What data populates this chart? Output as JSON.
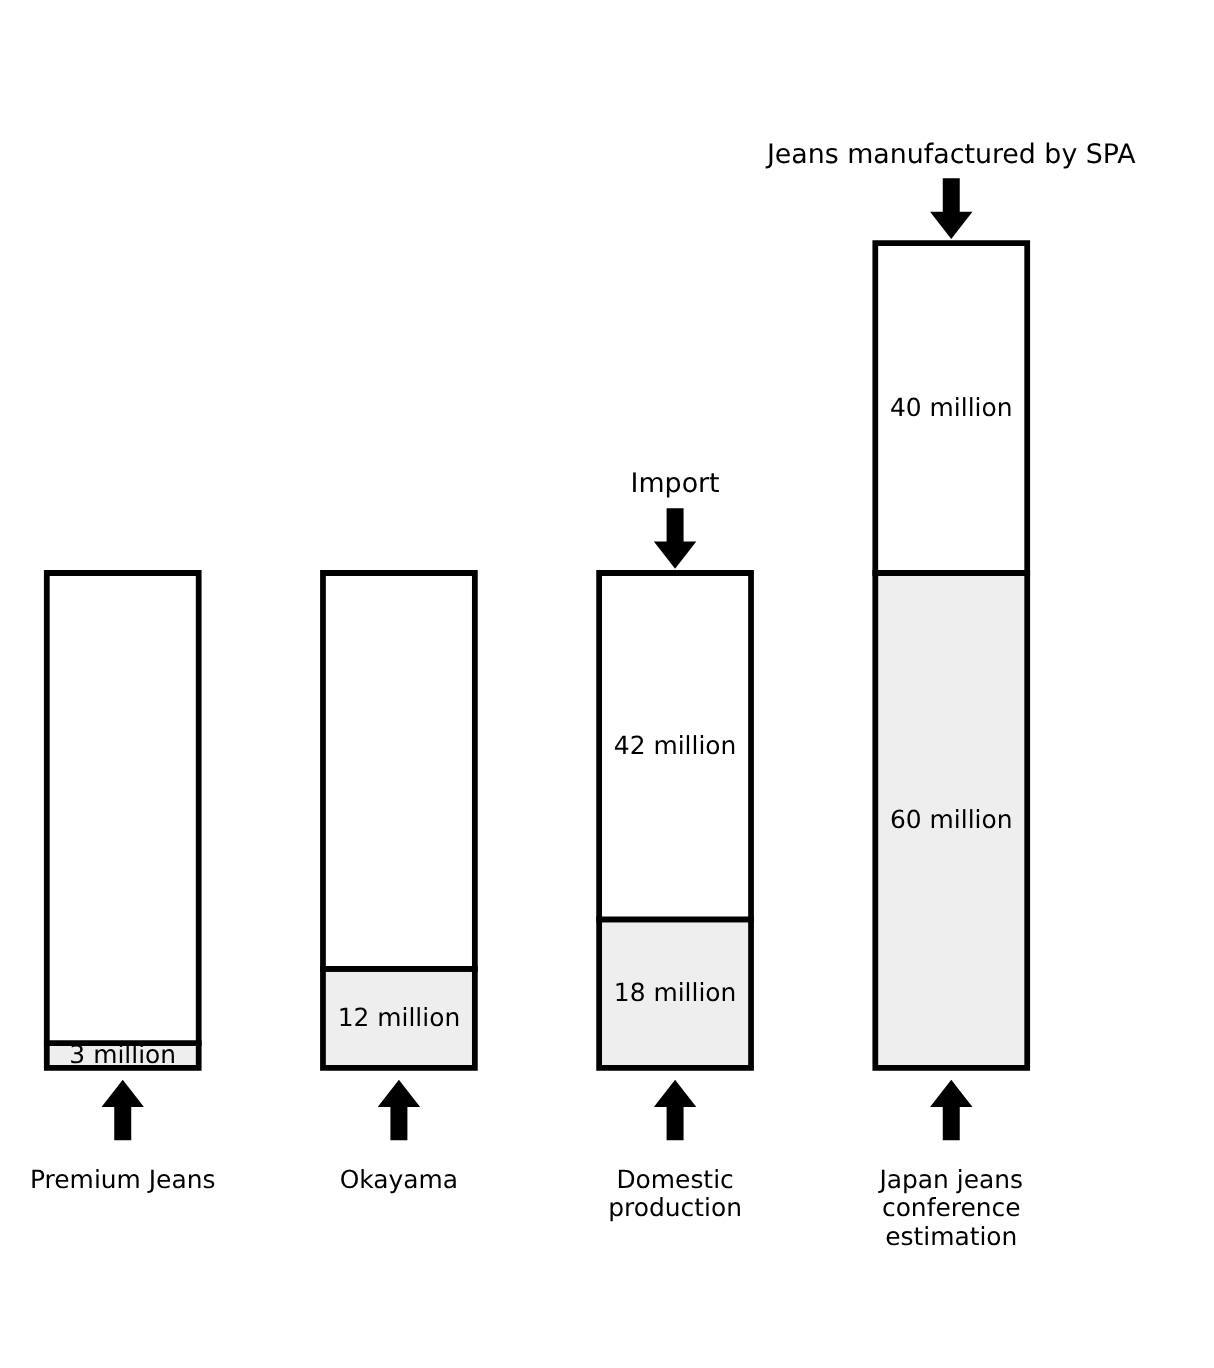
{
  "chart_data": {
    "type": "bar",
    "stacked": true,
    "categories": [
      "Premium Jeans",
      "Okayama",
      "Domestic\nproduction",
      "Japan jeans\nconference\nestimation"
    ],
    "series": [
      {
        "color": "#eeeeee",
        "values": [
          3,
          12,
          18,
          60
        ],
        "value_labels": [
          "3 million",
          "12 million",
          "18 million",
          "60 million"
        ]
      },
      {
        "color": "#ffffff",
        "values": [
          57,
          48,
          42,
          40
        ],
        "value_labels": [
          null,
          null,
          "42 million",
          "40 million"
        ]
      }
    ],
    "annotations": [
      {
        "text": "Import",
        "x": "Domestic\nproduction",
        "y": 60
      },
      {
        "text": "Jeans manufactured by SPA",
        "x": "Japan jeans\nconference\nestimation",
        "y": 100
      }
    ],
    "grid": false
  }
}
